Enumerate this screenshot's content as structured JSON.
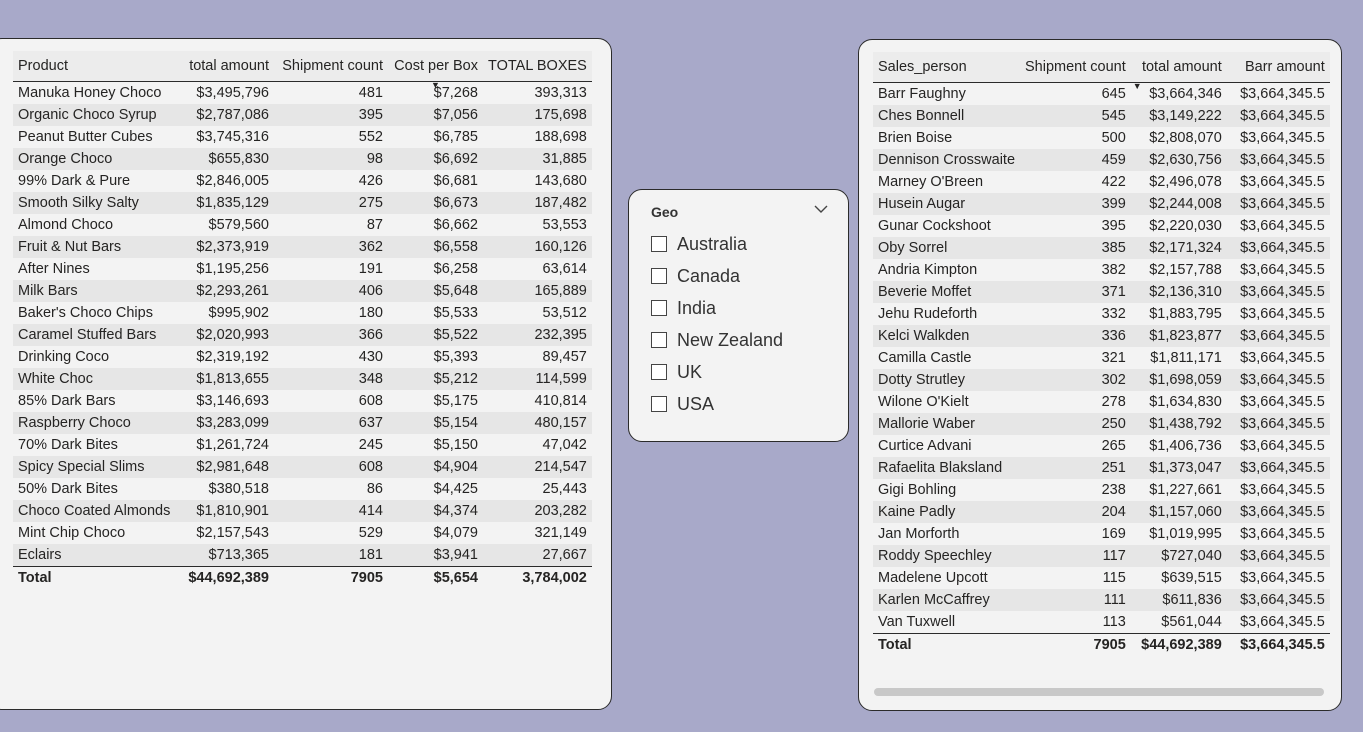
{
  "products_table": {
    "columns": [
      "Product",
      "total amount",
      "Shipment count",
      "Cost per Box",
      "TOTAL BOXES"
    ],
    "sorted_column_index": 3,
    "rows": [
      [
        "Manuka Honey Choco",
        "$3,495,796",
        "481",
        "$7,268",
        "393,313"
      ],
      [
        "Organic Choco Syrup",
        "$2,787,086",
        "395",
        "$7,056",
        "175,698"
      ],
      [
        "Peanut Butter Cubes",
        "$3,745,316",
        "552",
        "$6,785",
        "188,698"
      ],
      [
        "Orange Choco",
        "$655,830",
        "98",
        "$6,692",
        "31,885"
      ],
      [
        "99% Dark & Pure",
        "$2,846,005",
        "426",
        "$6,681",
        "143,680"
      ],
      [
        "Smooth Silky Salty",
        "$1,835,129",
        "275",
        "$6,673",
        "187,482"
      ],
      [
        "Almond Choco",
        "$579,560",
        "87",
        "$6,662",
        "53,553"
      ],
      [
        "Fruit & Nut Bars",
        "$2,373,919",
        "362",
        "$6,558",
        "160,126"
      ],
      [
        "After Nines",
        "$1,195,256",
        "191",
        "$6,258",
        "63,614"
      ],
      [
        "Milk Bars",
        "$2,293,261",
        "406",
        "$5,648",
        "165,889"
      ],
      [
        "Baker's Choco Chips",
        "$995,902",
        "180",
        "$5,533",
        "53,512"
      ],
      [
        "Caramel Stuffed Bars",
        "$2,020,993",
        "366",
        "$5,522",
        "232,395"
      ],
      [
        "Drinking Coco",
        "$2,319,192",
        "430",
        "$5,393",
        "89,457"
      ],
      [
        "White Choc",
        "$1,813,655",
        "348",
        "$5,212",
        "114,599"
      ],
      [
        "85% Dark Bars",
        "$3,146,693",
        "608",
        "$5,175",
        "410,814"
      ],
      [
        "Raspberry Choco",
        "$3,283,099",
        "637",
        "$5,154",
        "480,157"
      ],
      [
        "70% Dark Bites",
        "$1,261,724",
        "245",
        "$5,150",
        "47,042"
      ],
      [
        "Spicy Special Slims",
        "$2,981,648",
        "608",
        "$4,904",
        "214,547"
      ],
      [
        "50% Dark Bites",
        "$380,518",
        "86",
        "$4,425",
        "25,443"
      ],
      [
        "Choco Coated Almonds",
        "$1,810,901",
        "414",
        "$4,374",
        "203,282"
      ],
      [
        "Mint Chip Choco",
        "$2,157,543",
        "529",
        "$4,079",
        "321,149"
      ],
      [
        "Eclairs",
        "$713,365",
        "181",
        "$3,941",
        "27,667"
      ]
    ],
    "total": [
      "Total",
      "$44,692,389",
      "7905",
      "$5,654",
      "3,784,002"
    ]
  },
  "geo_slicer": {
    "title": "Geo",
    "chevron_icon": "chevron-down-icon",
    "options": [
      "Australia",
      "Canada",
      "India",
      "New Zealand",
      "UK",
      "USA"
    ],
    "selected": []
  },
  "sales_table": {
    "columns": [
      "Sales_person",
      "Shipment count",
      "total amount",
      "Barr amount"
    ],
    "sorted_column_index": 2,
    "rows": [
      [
        "Barr Faughny",
        "645",
        "$3,664,346",
        "$3,664,345.5"
      ],
      [
        "Ches Bonnell",
        "545",
        "$3,149,222",
        "$3,664,345.5"
      ],
      [
        "Brien Boise",
        "500",
        "$2,808,070",
        "$3,664,345.5"
      ],
      [
        "Dennison Crosswaite",
        "459",
        "$2,630,756",
        "$3,664,345.5"
      ],
      [
        "Marney O'Breen",
        "422",
        "$2,496,078",
        "$3,664,345.5"
      ],
      [
        "Husein Augar",
        "399",
        "$2,244,008",
        "$3,664,345.5"
      ],
      [
        "Gunar Cockshoot",
        "395",
        "$2,220,030",
        "$3,664,345.5"
      ],
      [
        "Oby Sorrel",
        "385",
        "$2,171,324",
        "$3,664,345.5"
      ],
      [
        "Andria Kimpton",
        "382",
        "$2,157,788",
        "$3,664,345.5"
      ],
      [
        "Beverie Moffet",
        "371",
        "$2,136,310",
        "$3,664,345.5"
      ],
      [
        "Jehu Rudeforth",
        "332",
        "$1,883,795",
        "$3,664,345.5"
      ],
      [
        "Kelci Walkden",
        "336",
        "$1,823,877",
        "$3,664,345.5"
      ],
      [
        "Camilla Castle",
        "321",
        "$1,811,171",
        "$3,664,345.5"
      ],
      [
        "Dotty Strutley",
        "302",
        "$1,698,059",
        "$3,664,345.5"
      ],
      [
        "Wilone O'Kielt",
        "278",
        "$1,634,830",
        "$3,664,345.5"
      ],
      [
        "Mallorie Waber",
        "250",
        "$1,438,792",
        "$3,664,345.5"
      ],
      [
        "Curtice Advani",
        "265",
        "$1,406,736",
        "$3,664,345.5"
      ],
      [
        "Rafaelita Blaksland",
        "251",
        "$1,373,047",
        "$3,664,345.5"
      ],
      [
        "Gigi Bohling",
        "238",
        "$1,227,661",
        "$3,664,345.5"
      ],
      [
        "Kaine Padly",
        "204",
        "$1,157,060",
        "$3,664,345.5"
      ],
      [
        "Jan Morforth",
        "169",
        "$1,019,995",
        "$3,664,345.5"
      ],
      [
        "Roddy Speechley",
        "117",
        "$727,040",
        "$3,664,345.5"
      ],
      [
        "Madelene Upcott",
        "115",
        "$639,515",
        "$3,664,345.5"
      ],
      [
        "Karlen McCaffrey",
        "111",
        "$611,836",
        "$3,664,345.5"
      ],
      [
        "Van Tuxwell",
        "113",
        "$561,044",
        "$3,664,345.5"
      ]
    ],
    "total": [
      "Total",
      "7905",
      "$44,692,389",
      "$3,664,345.5"
    ]
  },
  "colors": {
    "canvas_background": "#a8a9c9",
    "card_background": "#f3f3f3",
    "row_band": "#e6e6e6"
  }
}
